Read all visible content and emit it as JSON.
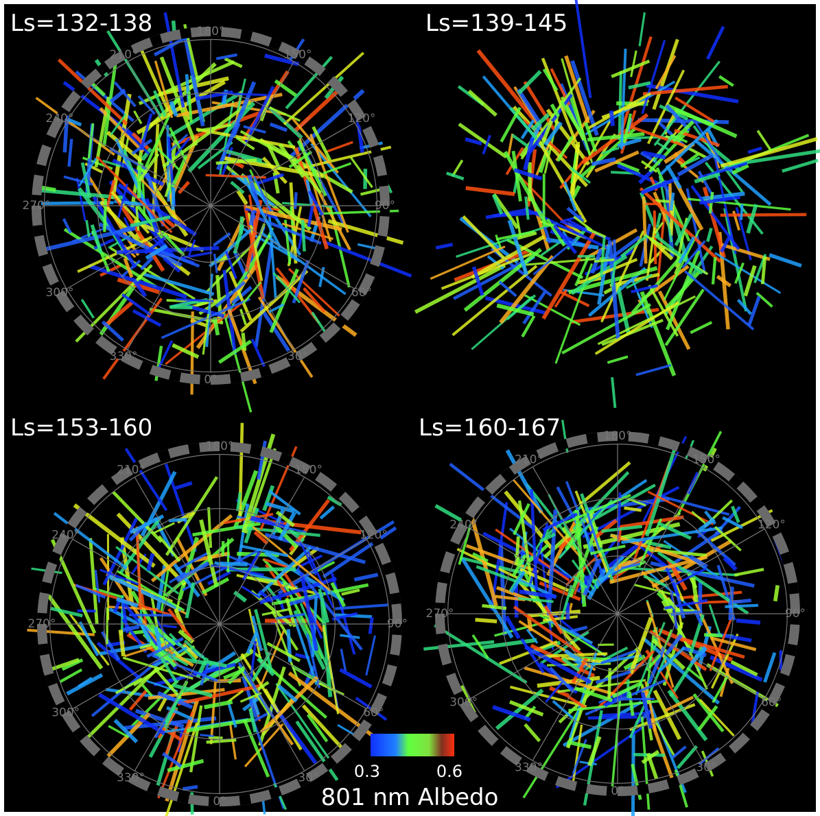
{
  "panels": [
    {
      "title": "Ls=132-138",
      "longitude_labels": [
        "0°",
        "30°",
        "60°",
        "90°",
        "120°",
        "150°",
        "180°",
        "210°",
        "240°",
        "270°",
        "300°",
        "330°"
      ]
    },
    {
      "title": "Ls=139-145"
    },
    {
      "title": "Ls=153-160",
      "longitude_labels": [
        "0°",
        "30°",
        "60°",
        "90°",
        "120°",
        "150°",
        "180°",
        "210°",
        "240°",
        "270°",
        "300°",
        "330°"
      ]
    },
    {
      "title": "Ls=160-167",
      "longitude_labels": [
        "0°",
        "30°",
        "60°",
        "90°",
        "120°",
        "150°",
        "180°",
        "210°",
        "240°",
        "270°",
        "300°",
        "330°"
      ]
    }
  ],
  "colorbar": {
    "min_label": "0.3",
    "max_label": "0.6",
    "label": "801 nm Albedo"
  }
}
